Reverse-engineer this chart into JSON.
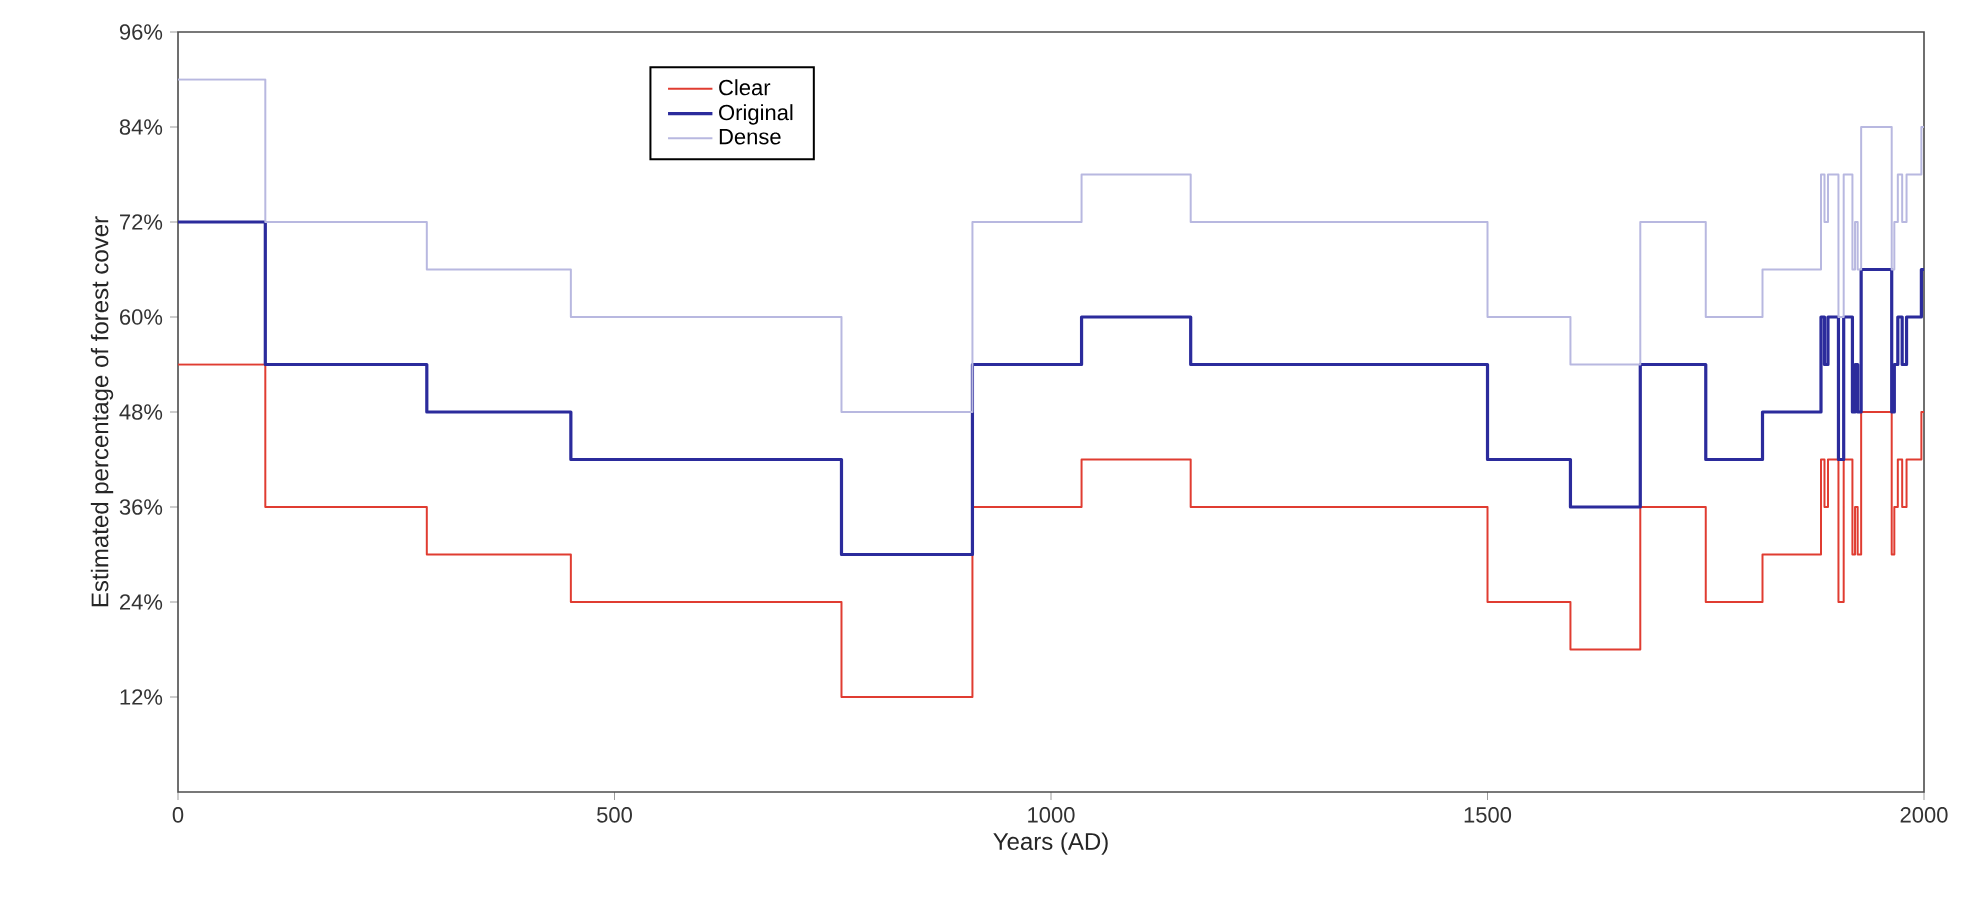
{
  "chart_data": {
    "type": "step",
    "xlabel": "Years (AD)",
    "ylabel": "Estimated percentage of forest cover",
    "x": [
      0,
      100,
      285,
      450,
      760,
      910,
      1035,
      1160,
      1500,
      1595,
      1675,
      1750,
      1815,
      1882,
      1886,
      1890,
      1902,
      1908,
      1918,
      1921,
      1924,
      1928,
      1963,
      1966,
      1970,
      1975,
      1980,
      1997,
      2000
    ],
    "series": [
      {
        "name": "Clear",
        "color": "#e03c31",
        "values": [
          54,
          36,
          30,
          24,
          12,
          36,
          42,
          36,
          24,
          18,
          36,
          24,
          30,
          42,
          36,
          42,
          24,
          42,
          30,
          36,
          30,
          48,
          30,
          36,
          42,
          36,
          42,
          48,
          48
        ]
      },
      {
        "name": "Original",
        "color": "#2b2b9c",
        "values": [
          72,
          54,
          48,
          42,
          30,
          54,
          60,
          54,
          42,
          36,
          54,
          42,
          48,
          60,
          54,
          60,
          42,
          60,
          48,
          54,
          48,
          66,
          48,
          54,
          60,
          54,
          60,
          66,
          66
        ]
      },
      {
        "name": "Dense",
        "color": "#b8b8e0",
        "values": [
          90,
          72,
          66,
          60,
          48,
          72,
          78,
          72,
          60,
          54,
          72,
          60,
          66,
          78,
          72,
          78,
          60,
          78,
          66,
          72,
          66,
          84,
          66,
          72,
          78,
          72,
          78,
          84,
          84
        ]
      }
    ],
    "xlim": [
      0,
      2000
    ],
    "ylim": [
      0,
      96
    ],
    "xticks": [
      0,
      500,
      1000,
      1500,
      2000
    ],
    "yticks": [
      {
        "value": 12,
        "label": "12%"
      },
      {
        "value": 24,
        "label": "24%"
      },
      {
        "value": 36,
        "label": "36%"
      },
      {
        "value": 48,
        "label": "48%"
      },
      {
        "value": 60,
        "label": "60%"
      },
      {
        "value": 72,
        "label": "72%"
      },
      {
        "value": 84,
        "label": "84%"
      },
      {
        "value": 96,
        "label": "96%"
      }
    ],
    "legend": "top",
    "grid": false
  }
}
